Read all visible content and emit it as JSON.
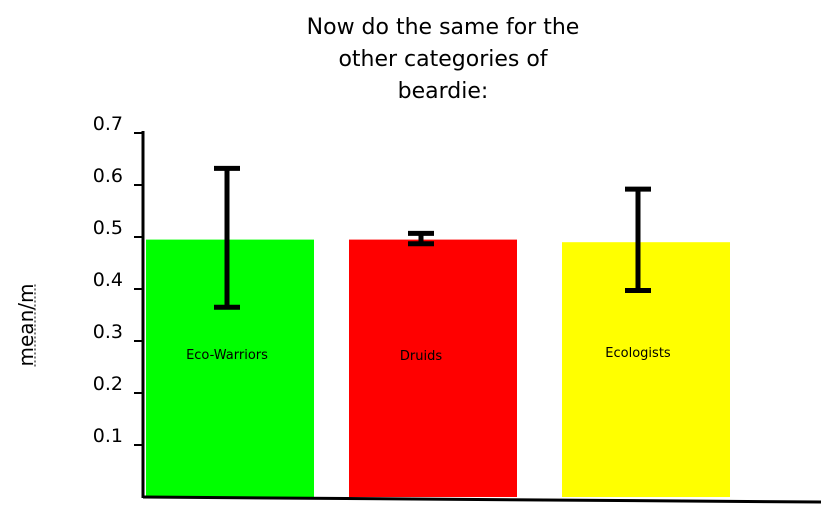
{
  "chart_data": {
    "type": "bar",
    "title_lines": [
      "Now do the same for the",
      "other categories of",
      "beardie:"
    ],
    "xlabel": "",
    "ylabel": "mean/m",
    "ylim": [
      0,
      0.7
    ],
    "yticks": [
      "0.1",
      "0.2",
      "0.3",
      "0.4",
      "0.5",
      "0.6",
      "0.7"
    ],
    "grid": false,
    "legend": "none",
    "categories": [
      "Eco-Warriors",
      "Druids",
      "Ecologists"
    ],
    "values": [
      0.495,
      0.495,
      0.49
    ],
    "error_low": [
      0.365,
      0.487,
      0.397
    ],
    "error_high": [
      0.632,
      0.507,
      0.592
    ],
    "colors": [
      "#00ff00",
      "#ff0000",
      "#ffff00"
    ],
    "error_color": "#000000"
  }
}
